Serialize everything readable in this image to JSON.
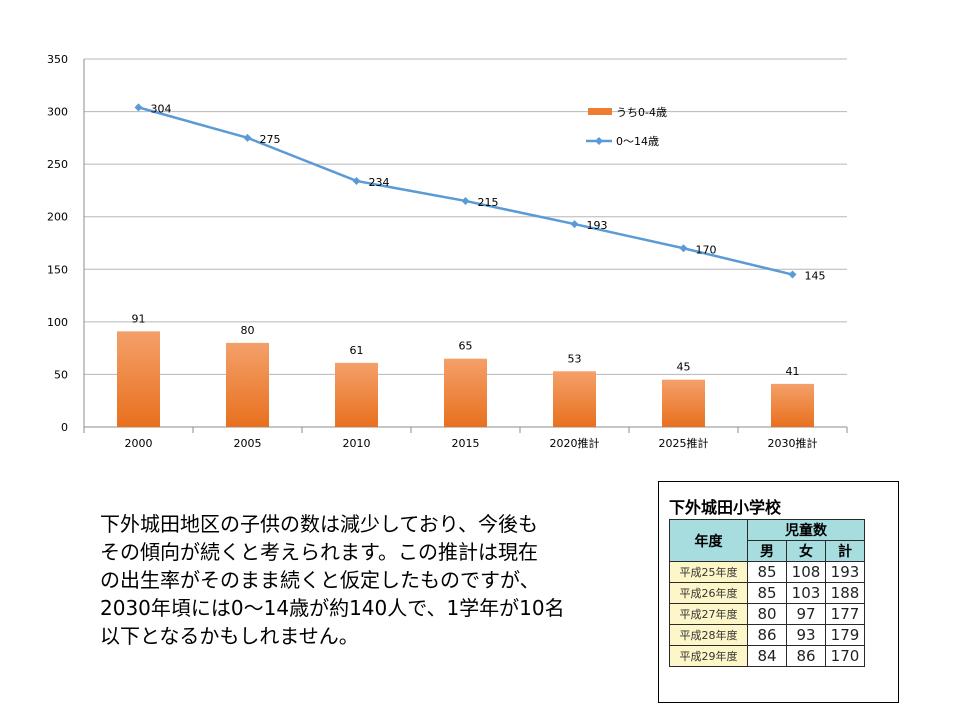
{
  "chart_data": {
    "type": "bar+line",
    "categories": [
      "2000",
      "2005",
      "2010",
      "2015",
      "2020推計",
      "2025推計",
      "2030推計"
    ],
    "series": [
      {
        "name": "うち0-4歳",
        "type": "bar",
        "color": "#ed7d31",
        "values": [
          91,
          80,
          61,
          65,
          53,
          45,
          41
        ]
      },
      {
        "name": "0～14歳",
        "type": "line",
        "color": "#5b9bd5",
        "values": [
          304,
          275,
          234,
          215,
          193,
          170,
          145
        ]
      }
    ],
    "ylim": [
      0,
      350
    ],
    "yticks": [
      0,
      50,
      100,
      150,
      200,
      250,
      300,
      350
    ],
    "grid": true,
    "legend": "top-right"
  },
  "description": {
    "lines": [
      "下外城田地区の子供の数は減少しており、今後も",
      "その傾向が続くと考えられます。この推計は現在",
      "の出生率がそのまま続くと仮定したものですが、",
      "2030年頃には0～14歳が約140人で、1学年が10名",
      "以下となるかもしれません。"
    ]
  },
  "student_table": {
    "title": "下外城田小学校",
    "year_header": "年度",
    "group_header": "児童数",
    "sub_headers": [
      "男",
      "女",
      "計"
    ],
    "rows": [
      {
        "year": "平成25年度",
        "male": "85",
        "female": "108",
        "total": "193"
      },
      {
        "year": "平成26年度",
        "male": "85",
        "female": "103",
        "total": "188"
      },
      {
        "year": "平成27年度",
        "male": "80",
        "female": "97",
        "total": "177"
      },
      {
        "year": "平成28年度",
        "male": "86",
        "female": "93",
        "total": "179"
      },
      {
        "year": "平成29年度",
        "male": "84",
        "female": "86",
        "total": "170"
      }
    ]
  }
}
